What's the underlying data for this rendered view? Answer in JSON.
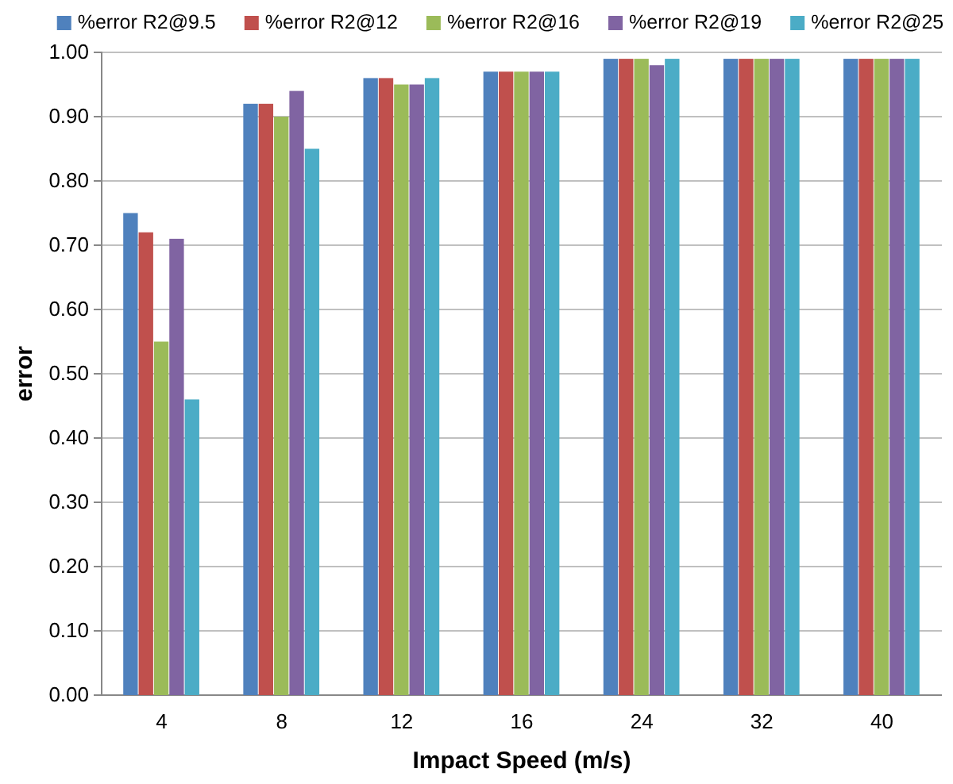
{
  "chart_data": {
    "type": "bar",
    "xlabel": "Impact Speed (m/s)",
    "ylabel": "error",
    "categories": [
      "4",
      "8",
      "12",
      "16",
      "24",
      "32",
      "40"
    ],
    "series": [
      {
        "name": "%error R2@9.5",
        "color": "#4f81bd",
        "values": [
          0.75,
          0.92,
          0.96,
          0.97,
          0.99,
          0.99,
          0.99
        ]
      },
      {
        "name": "%error R2@12",
        "color": "#c0504d",
        "values": [
          0.72,
          0.92,
          0.96,
          0.97,
          0.99,
          0.99,
          0.99
        ]
      },
      {
        "name": "%error R2@16",
        "color": "#9bbb59",
        "values": [
          0.55,
          0.9,
          0.95,
          0.97,
          0.99,
          0.99,
          0.99
        ]
      },
      {
        "name": "%error R2@19",
        "color": "#8064a2",
        "values": [
          0.71,
          0.94,
          0.95,
          0.97,
          0.98,
          0.99,
          0.99
        ]
      },
      {
        "name": "%error R2@25",
        "color": "#4bacc6",
        "values": [
          0.46,
          0.85,
          0.96,
          0.97,
          0.99,
          0.99,
          0.99
        ]
      }
    ],
    "ylim": [
      0,
      1
    ],
    "yticks": [
      {
        "value": 0,
        "label": "0.00"
      },
      {
        "value": 0.1,
        "label": "0.10"
      },
      {
        "value": 0.2,
        "label": "0.20"
      },
      {
        "value": 0.3,
        "label": "0.30"
      },
      {
        "value": 0.4,
        "label": "0.40"
      },
      {
        "value": 0.5,
        "label": "0.50"
      },
      {
        "value": 0.6,
        "label": "0.60"
      },
      {
        "value": 0.7,
        "label": "0.70"
      },
      {
        "value": 0.8,
        "label": "0.80"
      },
      {
        "value": 0.9,
        "label": "0.90"
      },
      {
        "value": 1,
        "label": "1.00"
      }
    ],
    "grid": "y",
    "legend": "top"
  }
}
